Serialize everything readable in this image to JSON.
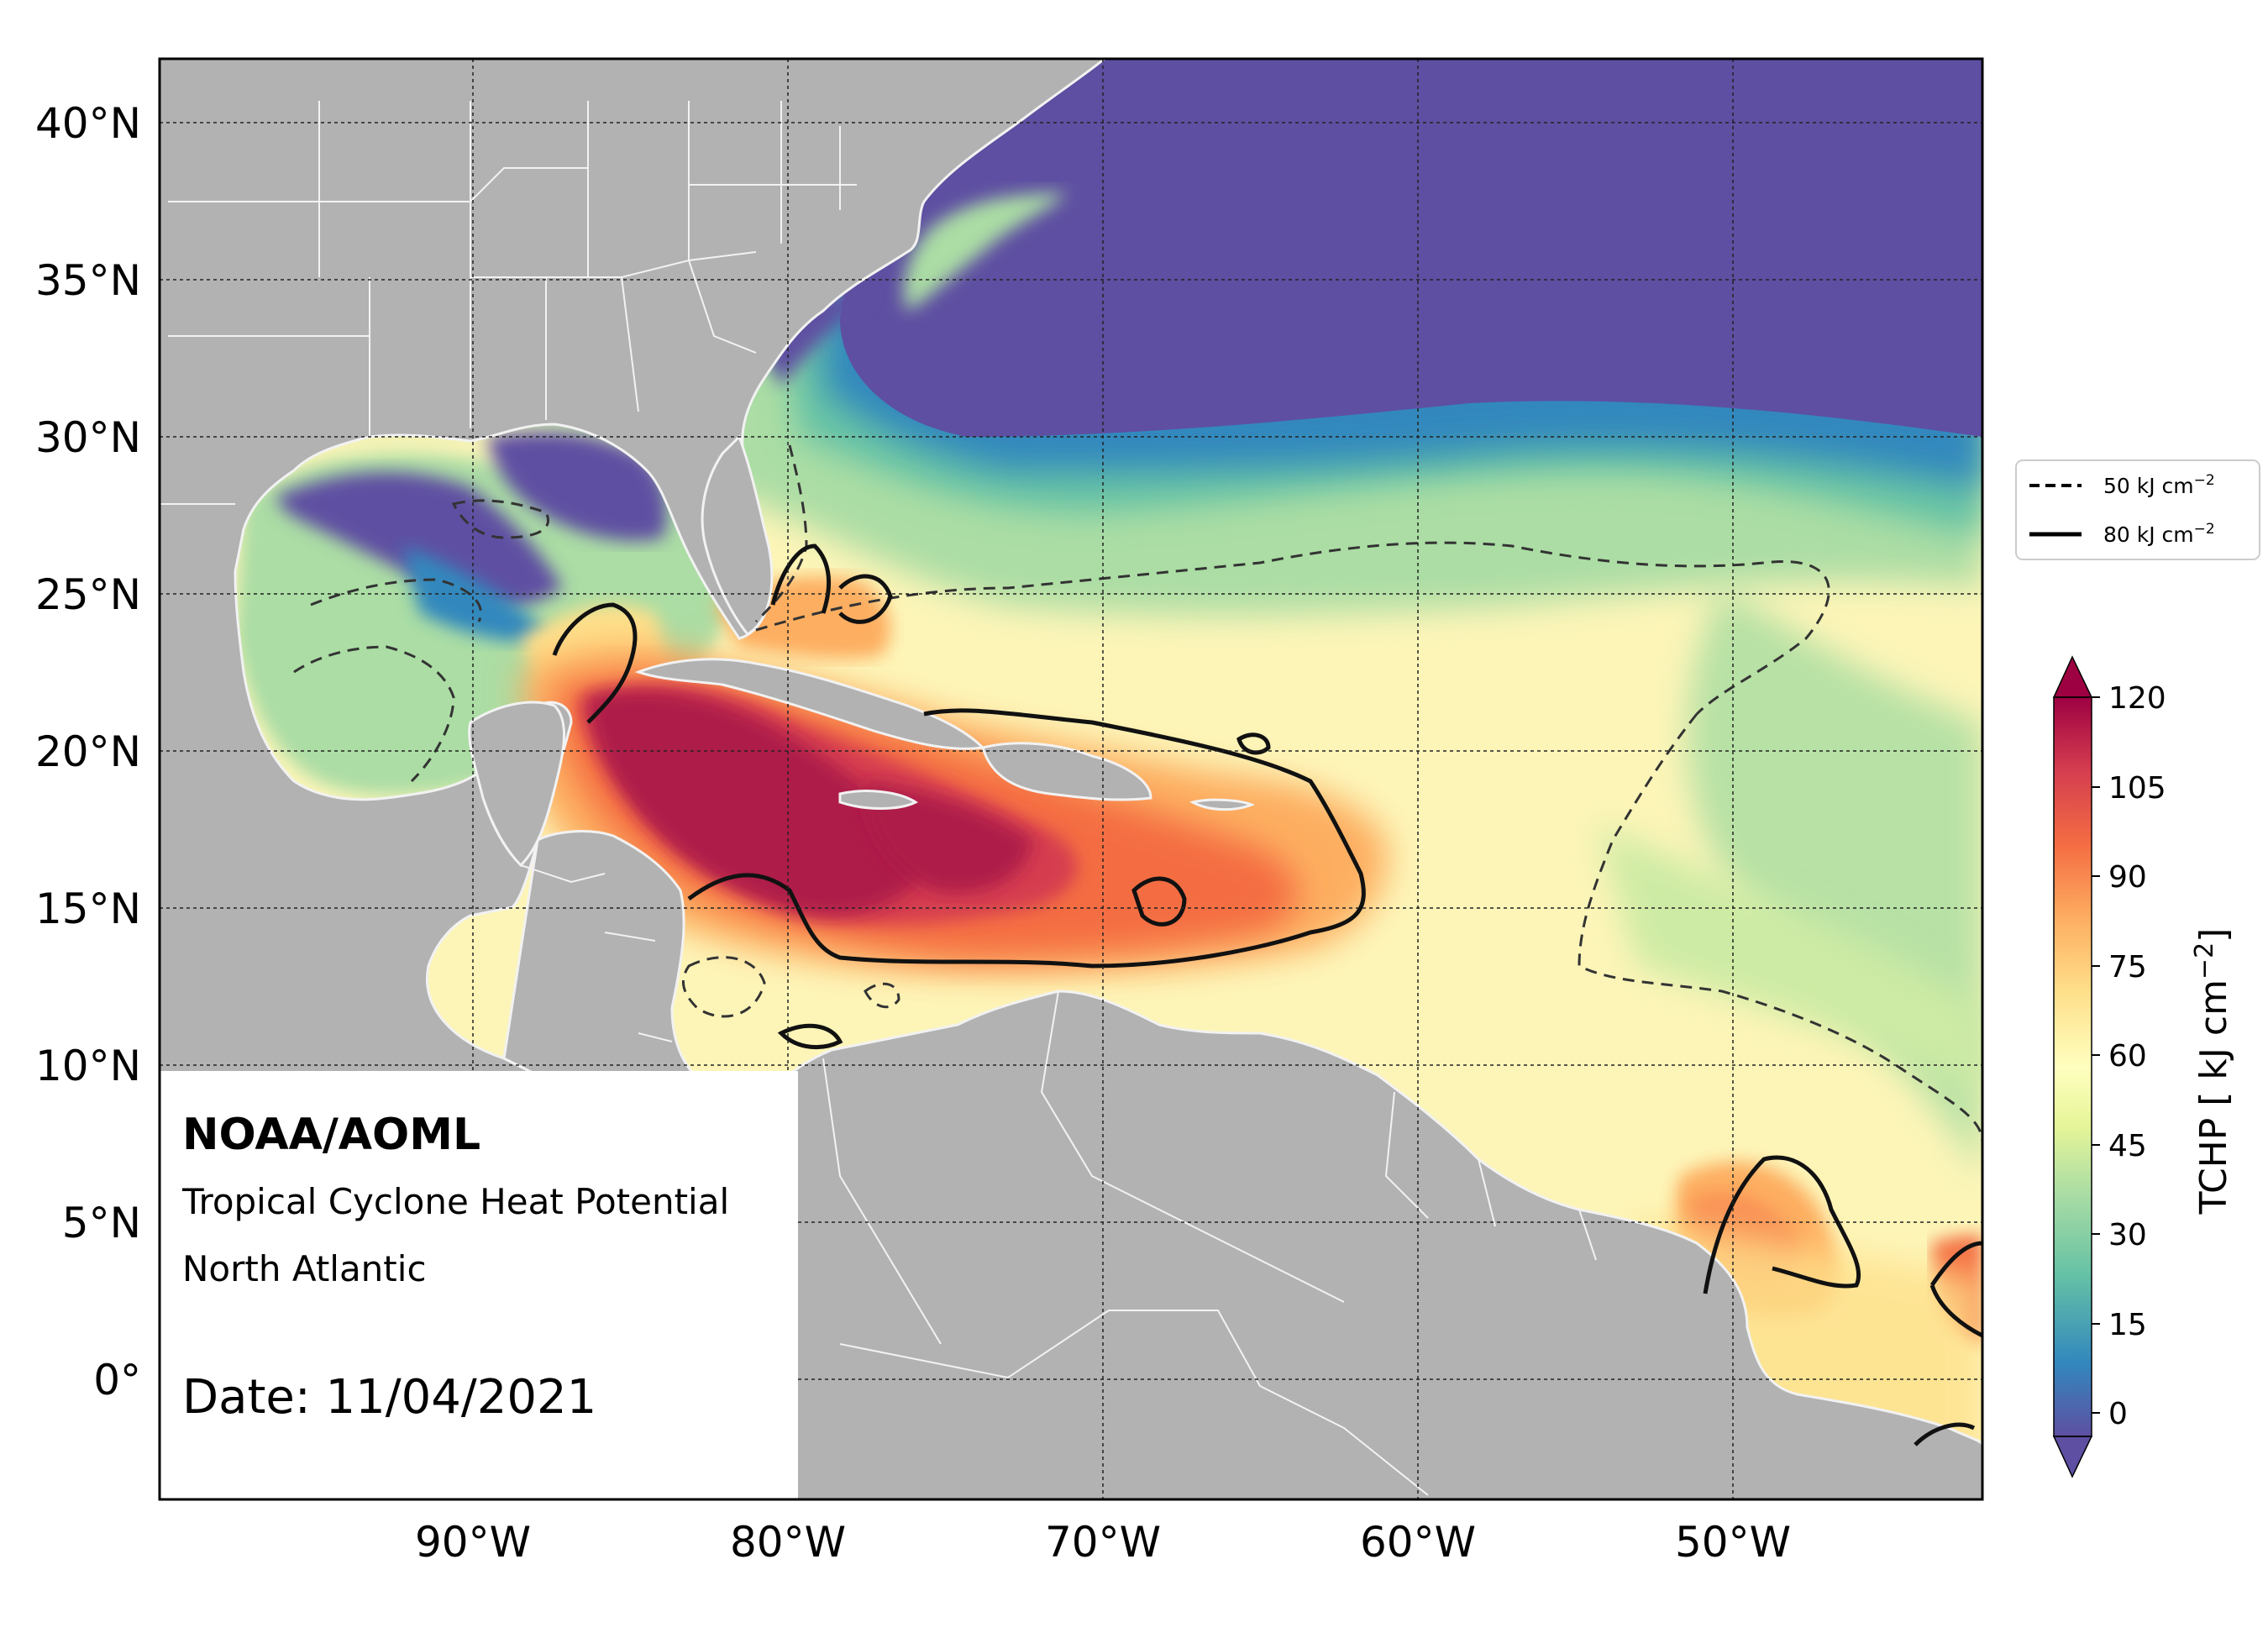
{
  "map": {
    "title_org": "NOAA/AOML",
    "product": "Tropical Cyclone Heat Potential",
    "region": "North Atlantic",
    "date_label": "Date: 11/04/2021",
    "lat_labels": [
      "40°N",
      "35°N",
      "30°N",
      "25°N",
      "20°N",
      "15°N",
      "10°N",
      "5°N",
      "0°"
    ],
    "lon_labels": [
      "90°W",
      "80°W",
      "70°W",
      "60°W",
      "50°W"
    ]
  },
  "legend": {
    "dashed_label": "50 kJ cm",
    "solid_label": "80 kJ cm",
    "unit_exponent": "−2"
  },
  "colorbar": {
    "label": "TCHP [ kJ cm",
    "label_exp": "−2",
    "label_close": "]",
    "ticks": [
      "120",
      "105",
      "90",
      "75",
      "60",
      "45",
      "30",
      "15",
      "0"
    ],
    "colors": [
      "#5e4fa2",
      "#3288bd",
      "#66c2a5",
      "#abdda4",
      "#e6f598",
      "#ffffbf",
      "#fee08b",
      "#fdae61",
      "#f46d43",
      "#d53e4f",
      "#9e0142"
    ]
  }
}
